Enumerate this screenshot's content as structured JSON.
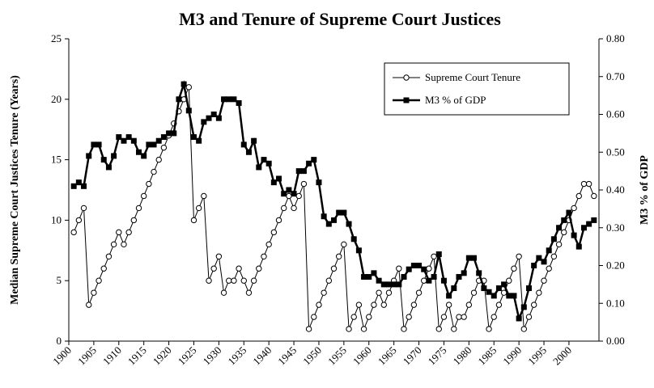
{
  "chart_data": {
    "type": "line",
    "title": "M3 and Tenure of Supreme Court Justices",
    "ylabel": "Median Supreme Court Justices Tenure (Years)",
    "y2label": "M3 % of GDP",
    "x": [
      1901,
      1902,
      1903,
      1904,
      1905,
      1906,
      1907,
      1908,
      1909,
      1910,
      1911,
      1912,
      1913,
      1914,
      1915,
      1916,
      1917,
      1918,
      1919,
      1920,
      1921,
      1922,
      1923,
      1924,
      1925,
      1926,
      1927,
      1928,
      1929,
      1930,
      1931,
      1932,
      1933,
      1934,
      1935,
      1936,
      1937,
      1938,
      1939,
      1940,
      1941,
      1942,
      1943,
      1944,
      1945,
      1946,
      1947,
      1948,
      1949,
      1950,
      1951,
      1952,
      1953,
      1954,
      1955,
      1956,
      1957,
      1958,
      1959,
      1960,
      1961,
      1962,
      1963,
      1964,
      1965,
      1966,
      1967,
      1968,
      1969,
      1970,
      1971,
      1972,
      1973,
      1974,
      1975,
      1976,
      1977,
      1978,
      1979,
      1980,
      1981,
      1982,
      1983,
      1984,
      1985,
      1986,
      1987,
      1988,
      1989,
      1990,
      1991,
      1992,
      1993,
      1994,
      1995,
      1996,
      1997,
      1998,
      1999,
      2000,
      2001,
      2002,
      2003,
      2004,
      2005
    ],
    "series": [
      {
        "name": "Supreme Court Tenure",
        "color": "#000000",
        "marker": "circle",
        "values": [
          9,
          10,
          11,
          3,
          4,
          5,
          6,
          7,
          8,
          9,
          8,
          9,
          10,
          11,
          12,
          13,
          14,
          15,
          16,
          17,
          18,
          19,
          20,
          21,
          10,
          11,
          12,
          5,
          6,
          7,
          4,
          5,
          5,
          6,
          5,
          4,
          5,
          6,
          7,
          8,
          9,
          10,
          11,
          12,
          11,
          12,
          13,
          1,
          2,
          3,
          4,
          5,
          6,
          7,
          8,
          1,
          2,
          3,
          1,
          2,
          3,
          4,
          3,
          4,
          5,
          6,
          1,
          2,
          3,
          4,
          5,
          6,
          7,
          1,
          2,
          3,
          1,
          2,
          2,
          3,
          4,
          5,
          5,
          1,
          2,
          3,
          4,
          5,
          6,
          7,
          1,
          2,
          3,
          4,
          5,
          6,
          7,
          8,
          9,
          10,
          11,
          12,
          13,
          13,
          12
        ]
      },
      {
        "name": "M3 % of GDP",
        "color": "#000000",
        "marker": "square",
        "axis": "y2",
        "values": [
          0.41,
          0.42,
          0.41,
          0.49,
          0.52,
          0.52,
          0.48,
          0.46,
          0.49,
          0.54,
          0.53,
          0.54,
          0.53,
          0.5,
          0.49,
          0.52,
          0.52,
          0.53,
          0.54,
          0.55,
          0.55,
          0.64,
          0.68,
          0.61,
          0.54,
          0.53,
          0.58,
          0.59,
          0.6,
          0.59,
          0.64,
          0.64,
          0.64,
          0.63,
          0.52,
          0.5,
          0.53,
          0.46,
          0.48,
          0.47,
          0.42,
          0.43,
          0.39,
          0.4,
          0.39,
          0.45,
          0.45,
          0.47,
          0.48,
          0.42,
          0.33,
          0.31,
          0.32,
          0.34,
          0.34,
          0.31,
          0.27,
          0.24,
          0.17,
          0.17,
          0.18,
          0.16,
          0.15,
          0.15,
          0.15,
          0.15,
          0.17,
          0.19,
          0.2,
          0.2,
          0.19,
          0.16,
          0.17,
          0.23,
          0.16,
          0.12,
          0.14,
          0.17,
          0.18,
          0.22,
          0.22,
          0.18,
          0.14,
          0.13,
          0.12,
          0.14,
          0.15,
          0.12,
          0.12,
          0.06,
          0.09,
          0.14,
          0.2,
          0.22,
          0.21,
          0.24,
          0.27,
          0.3,
          0.32,
          0.34,
          0.28,
          0.25,
          0.3,
          0.31,
          0.32
        ]
      }
    ],
    "xlim": [
      1900,
      2006
    ],
    "xticks": [
      1900,
      1905,
      1910,
      1915,
      1920,
      1925,
      1930,
      1935,
      1940,
      1945,
      1950,
      1955,
      1960,
      1965,
      1970,
      1975,
      1980,
      1985,
      1990,
      1995,
      2000
    ],
    "ylim": [
      0,
      25
    ],
    "yticks": [
      0,
      5,
      10,
      15,
      20,
      25
    ],
    "y2lim": [
      0,
      0.8
    ],
    "y2ticks": [
      {
        "value": 0,
        "label": "0.00"
      },
      {
        "value": 0.1,
        "label": "0.10"
      },
      {
        "value": 0.2,
        "label": "0.20"
      },
      {
        "value": 0.3,
        "label": "0.30"
      },
      {
        "value": 0.4,
        "label": "0.40"
      },
      {
        "value": 0.5,
        "label": "0.50"
      },
      {
        "value": 0.6,
        "label": "0.60"
      },
      {
        "value": 0.7,
        "label": "0.70"
      },
      {
        "value": 0.8,
        "label": "0.80"
      }
    ],
    "legend": "upper right",
    "grid": false
  }
}
